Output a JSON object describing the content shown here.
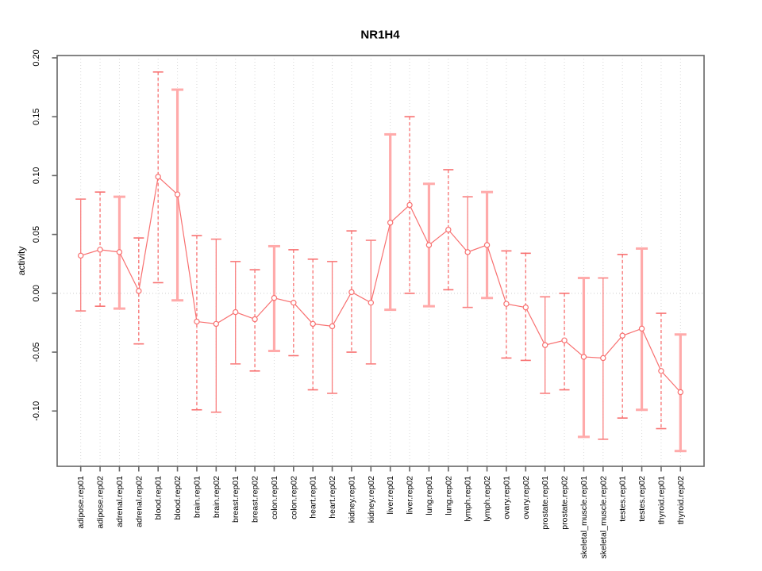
{
  "chart_data": {
    "type": "line",
    "title": "NR1H4",
    "ylabel": "activity",
    "xlabel": "",
    "legend": "none",
    "grid": "vertical dotted gridlines at each category plus dotted horizontal zero line",
    "ylim": [
      -0.147,
      0.202
    ],
    "ytick_labels": [
      "0.20",
      "0.15",
      "0.10",
      "0.05",
      "0.00",
      "-0.05",
      "-0.10"
    ],
    "ytick_values": [
      0.2,
      0.15,
      0.1,
      0.05,
      0.0,
      -0.05,
      -0.1
    ],
    "categories": [
      "adipose.rep01",
      "adipose.rep02",
      "adrenal.rep01",
      "adrenal.rep02",
      "blood.rep01",
      "blood.rep02",
      "brain.rep01",
      "brain.rep02",
      "breast.rep01",
      "breast.rep02",
      "colon.rep01",
      "colon.rep02",
      "heart.rep01",
      "heart.rep02",
      "kidney.rep01",
      "kidney.rep02",
      "liver.rep01",
      "liver.rep02",
      "lung.rep01",
      "lung.rep02",
      "lymph.rep01",
      "lymph.rep02",
      "ovary.rep01",
      "ovary.rep02",
      "prostate.rep01",
      "prostate.rep02",
      "skeletal_muscle.rep01",
      "skeletal_muscle.rep02",
      "testes.rep01",
      "testes.rep02",
      "thyroid.rep01",
      "thyroid.rep02"
    ],
    "series": [
      {
        "name": "activity",
        "values": [
          0.032,
          0.037,
          0.035,
          0.002,
          0.099,
          0.084,
          -0.024,
          -0.026,
          -0.016,
          -0.022,
          -0.004,
          -0.008,
          -0.026,
          -0.028,
          0.001,
          -0.008,
          0.06,
          0.075,
          0.041,
          0.054,
          0.035,
          0.041,
          -0.009,
          -0.012,
          -0.044,
          -0.04,
          -0.054,
          -0.055,
          -0.036,
          -0.03,
          -0.066,
          -0.084
        ],
        "lower": [
          -0.015,
          -0.011,
          -0.013,
          -0.043,
          0.009,
          -0.006,
          -0.099,
          -0.101,
          -0.06,
          -0.066,
          -0.049,
          -0.053,
          -0.082,
          -0.085,
          -0.05,
          -0.06,
          -0.014,
          0.0,
          -0.011,
          0.003,
          -0.012,
          -0.004,
          -0.055,
          -0.057,
          -0.085,
          -0.082,
          -0.122,
          -0.124,
          -0.106,
          -0.099,
          -0.115,
          -0.134
        ],
        "upper": [
          0.08,
          0.086,
          0.082,
          0.047,
          0.188,
          0.173,
          0.049,
          0.046,
          0.027,
          0.02,
          0.04,
          0.037,
          0.029,
          0.027,
          0.053,
          0.045,
          0.135,
          0.15,
          0.093,
          0.105,
          0.082,
          0.086,
          0.036,
          0.034,
          -0.003,
          0.0,
          0.013,
          0.013,
          0.033,
          0.038,
          -0.017,
          -0.035
        ],
        "bar_styles": [
          "solid",
          "dashed",
          "thick",
          "dashed",
          "dashed",
          "thick",
          "dashed",
          "solid",
          "solid",
          "dashed",
          "thick",
          "dashed",
          "dashed",
          "solid",
          "dashed",
          "solid",
          "thick",
          "dashed",
          "thick",
          "dashed",
          "solid",
          "thick",
          "dashed",
          "dashed",
          "solid",
          "dashed",
          "thick",
          "solid",
          "dashed",
          "thick",
          "dashed",
          "thick"
        ]
      }
    ],
    "colors": {
      "line": "#f87070",
      "point_fill": "#ffffff",
      "solid_bar": "#f98080",
      "dashed_bar": "#f87070",
      "thick_bar": "#ffaaaa",
      "frame": "#666666",
      "grid": "#d9d9d9",
      "zero_line": "#cccccc",
      "text": "#000000",
      "background": "#ffffff"
    }
  }
}
